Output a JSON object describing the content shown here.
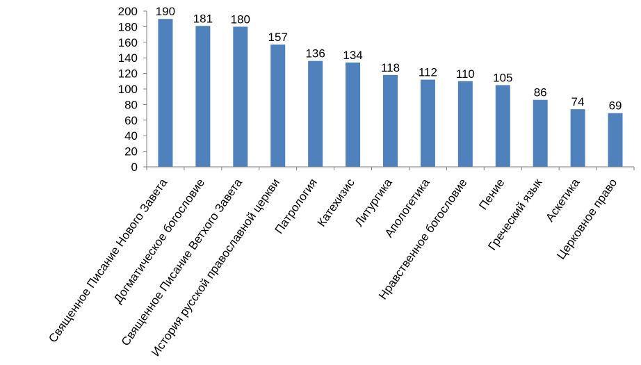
{
  "chart_data": {
    "type": "bar",
    "title": "",
    "xlabel": "",
    "ylabel": "",
    "ylim": [
      0,
      200
    ],
    "yticks": [
      0,
      20,
      40,
      60,
      80,
      100,
      120,
      140,
      160,
      180,
      200
    ],
    "grid": false,
    "legend": "none",
    "bar_color": "#4f81bd",
    "categories": [
      "Священное Писание Нового Завета",
      "Догматическое богословие",
      "Священное Писание Ветхого  Завета",
      "История русской православной церкви",
      "Патрология",
      "Катехизис",
      "Литургика",
      "Апологетика",
      "Нравственное богословие",
      "Пение",
      "Греческий язык",
      "Аскетика",
      "Церковное право"
    ],
    "values": [
      190,
      181,
      180,
      157,
      136,
      134,
      118,
      112,
      110,
      105,
      86,
      74,
      69
    ]
  }
}
